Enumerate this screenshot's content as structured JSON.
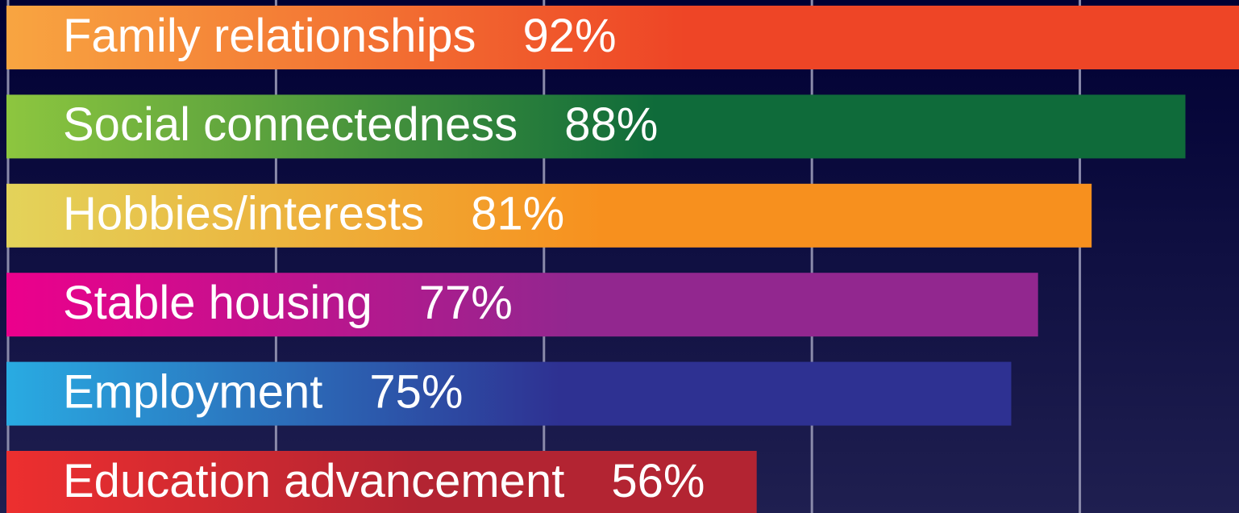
{
  "chart_data": {
    "type": "hbar",
    "categories": [
      "Family relationships",
      "Social connectedness",
      "Hobbies/interests",
      "Stable housing",
      "Employment",
      "Education advancement"
    ],
    "values": [
      92,
      88,
      81,
      77,
      75,
      56
    ],
    "value_labels": [
      "92%",
      "88%",
      "81%",
      "77%",
      "75%",
      "56%"
    ],
    "colors": [
      [
        "#f8a541",
        "#ee4526"
      ],
      [
        "#8dc63f",
        "#0f6b3a"
      ],
      [
        "#e3d35a",
        "#f7901e"
      ],
      [
        "#ec008c",
        "#92278f"
      ],
      [
        "#29abe2",
        "#2e3192"
      ],
      [
        "#ed2f2f",
        "#b32432"
      ]
    ],
    "xlim": [
      0,
      92
    ],
    "xticks": [
      0,
      20,
      40,
      60,
      80
    ],
    "grid": true
  }
}
